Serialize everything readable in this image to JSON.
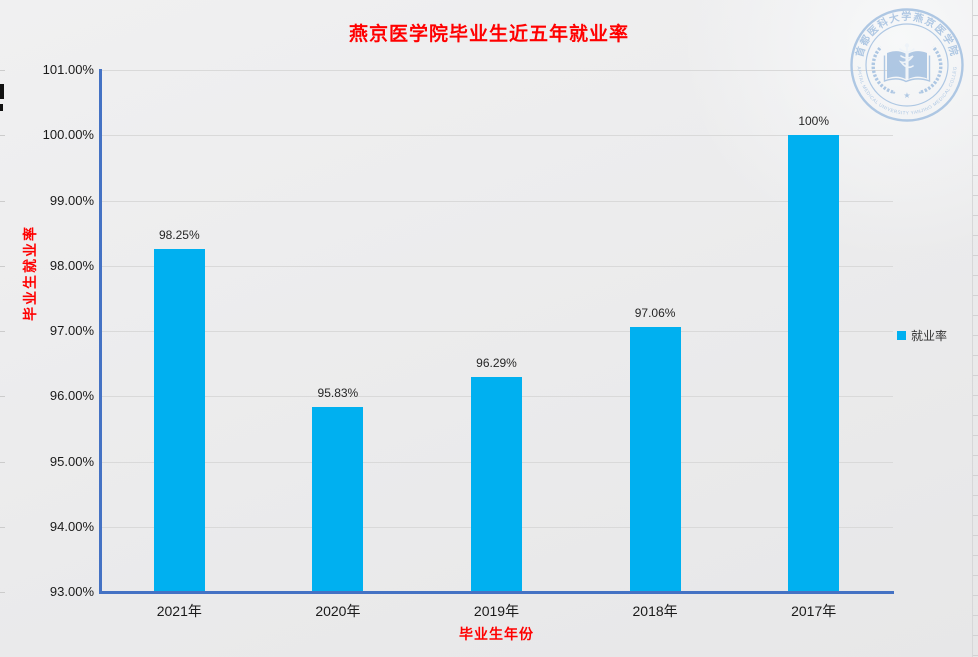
{
  "chart_data": {
    "type": "bar",
    "title": "燕京医学院毕业生近五年就业率",
    "xlabel": "毕业生年份",
    "ylabel": "毕业生就业率",
    "categories": [
      "2021年",
      "2020年",
      "2019年",
      "2018年",
      "2017年"
    ],
    "values": [
      98.25,
      95.83,
      96.29,
      97.06,
      100
    ],
    "value_labels": [
      "98.25%",
      "95.83%",
      "96.29%",
      "97.06%",
      "100%"
    ],
    "ylim": [
      93,
      101
    ],
    "y_tick_step": 1,
    "y_tick_labels": [
      "93.00%",
      "94.00%",
      "95.00%",
      "96.00%",
      "97.00%",
      "98.00%",
      "99.00%",
      "100.00%",
      "101.00%"
    ],
    "grid": true,
    "legend": {
      "label": "就业率",
      "position": "right"
    },
    "series": [
      {
        "name": "就业率",
        "values": [
          98.25,
          95.83,
          96.29,
          97.06,
          100
        ]
      }
    ]
  },
  "colors": {
    "bar": "#00b0f0",
    "axis": "#4472c4",
    "gridline": "#d9d9d9",
    "title": "#ff0000",
    "tick_text": "#1a1a1a",
    "seal": "#a9c4e2"
  },
  "seal": {
    "top_text": "首都医科大学燕京医学院",
    "bottom_text": "CAPITAL MEDICAL UNIVERSITY YANJING MEDICAL COLLEGE"
  }
}
